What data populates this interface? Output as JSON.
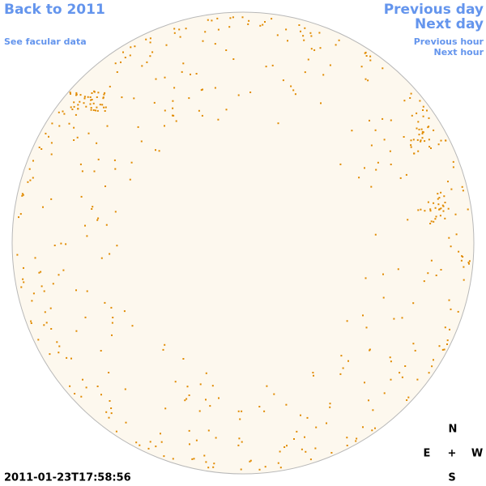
{
  "links": {
    "back": "Back to 2011",
    "facular_data": "See facular data",
    "previous_day": "Previous day",
    "next_day": "Next day",
    "previous_hour": "Previous hour",
    "next_hour": "Next hour"
  },
  "timestamp": "2011-01-23T17:58:56",
  "compass": {
    "north": "N",
    "east": "E",
    "center": "+",
    "west": "W",
    "south": "S"
  }
}
